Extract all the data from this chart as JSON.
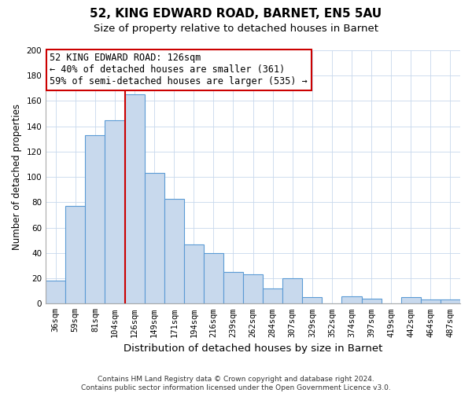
{
  "title": "52, KING EDWARD ROAD, BARNET, EN5 5AU",
  "subtitle": "Size of property relative to detached houses in Barnet",
  "xlabel": "Distribution of detached houses by size in Barnet",
  "ylabel": "Number of detached properties",
  "categories": [
    "36sqm",
    "59sqm",
    "81sqm",
    "104sqm",
    "126sqm",
    "149sqm",
    "171sqm",
    "194sqm",
    "216sqm",
    "239sqm",
    "262sqm",
    "284sqm",
    "307sqm",
    "329sqm",
    "352sqm",
    "374sqm",
    "397sqm",
    "419sqm",
    "442sqm",
    "464sqm",
    "487sqm"
  ],
  "values": [
    18,
    77,
    133,
    145,
    165,
    103,
    83,
    47,
    40,
    25,
    23,
    12,
    20,
    5,
    0,
    6,
    4,
    0,
    5,
    3,
    3
  ],
  "bar_color": "#c8d9ed",
  "bar_edge_color": "#5b9bd5",
  "vline_color": "#cc0000",
  "ylim": [
    0,
    200
  ],
  "yticks": [
    0,
    20,
    40,
    60,
    80,
    100,
    120,
    140,
    160,
    180,
    200
  ],
  "annotation_title": "52 KING EDWARD ROAD: 126sqm",
  "annotation_line1": "← 40% of detached houses are smaller (361)",
  "annotation_line2": "59% of semi-detached houses are larger (535) →",
  "annotation_box_color": "#ffffff",
  "annotation_box_edge": "#cc0000",
  "footer_line1": "Contains HM Land Registry data © Crown copyright and database right 2024.",
  "footer_line2": "Contains public sector information licensed under the Open Government Licence v3.0.",
  "title_fontsize": 11,
  "subtitle_fontsize": 9.5,
  "xlabel_fontsize": 9.5,
  "ylabel_fontsize": 8.5,
  "tick_fontsize": 7.5,
  "footer_fontsize": 6.5,
  "annotation_fontsize": 8.5,
  "vline_bar_index": 4
}
